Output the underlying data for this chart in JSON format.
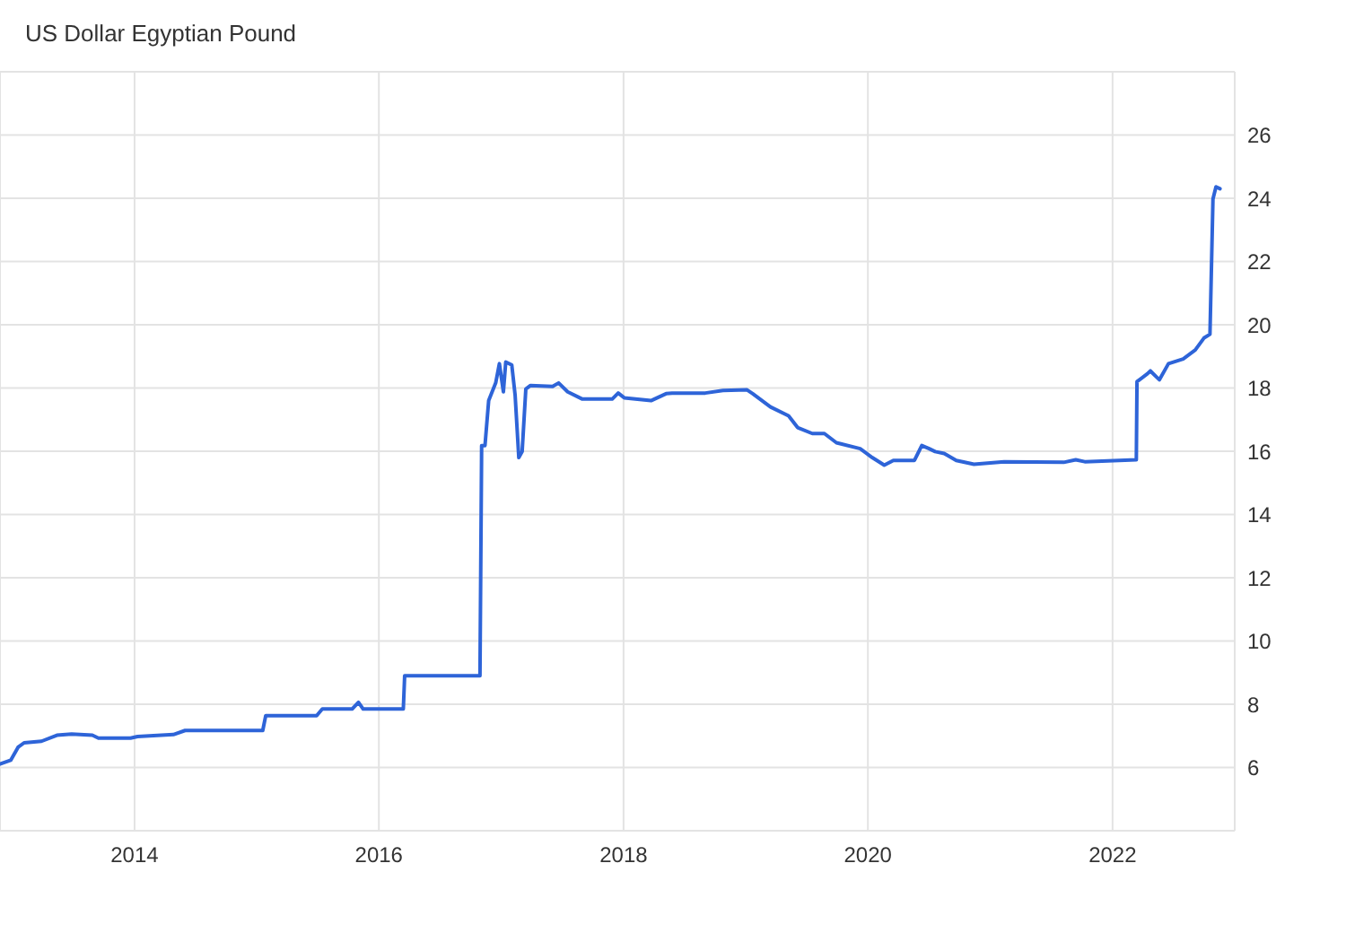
{
  "chart_data": {
    "type": "line",
    "title": "US Dollar Egyptian Pound",
    "x": [
      "2012-11-25",
      "2012-12-27",
      "2013-01-18",
      "2013-02-05",
      "2013-03-29",
      "2013-05-14",
      "2013-06-27",
      "2013-08-28",
      "2013-09-15",
      "2013-12-20",
      "2014-01-10",
      "2014-04-27",
      "2014-06-01",
      "2015-01-19",
      "2015-01-28",
      "2015-06-29",
      "2015-07-16",
      "2015-10-13",
      "2015-11-01",
      "2015-11-15",
      "2016-03-14",
      "2016-03-18",
      "2016-10-29",
      "2016-11-03",
      "2016-11-13",
      "2016-11-24",
      "2016-12-15",
      "2016-12-26",
      "2017-01-07",
      "2017-01-14",
      "2017-02-01",
      "2017-02-11",
      "2017-02-22",
      "2017-03-04",
      "2017-03-15",
      "2017-03-29",
      "2017-06-03",
      "2017-06-21",
      "2017-07-18",
      "2017-08-31",
      "2017-11-28",
      "2017-12-16",
      "2018-01-03",
      "2018-03-24",
      "2018-05-08",
      "2018-05-26",
      "2018-09-02",
      "2018-10-25",
      "2019-01-05",
      "2019-01-22",
      "2019-03-16",
      "2019-05-09",
      "2019-06-05",
      "2019-07-19",
      "2019-08-24",
      "2019-09-29",
      "2019-12-09",
      "2020-01-14",
      "2020-02-19",
      "2020-03-17",
      "2020-05-19",
      "2020-06-10",
      "2020-07-02",
      "2020-07-20",
      "2020-08-16",
      "2020-09-21",
      "2020-11-13",
      "2021-02-11",
      "2021-08-08",
      "2021-09-13",
      "2021-10-10",
      "2022-03-13",
      "2022-03-15",
      "2022-04-15",
      "2022-04-24",
      "2022-05-12",
      "2022-05-21",
      "2022-06-17",
      "2022-07-31",
      "2022-09-05",
      "2022-10-01",
      "2022-10-19",
      "2022-10-28",
      "2022-11-06",
      "2022-11-18"
    ],
    "values": [
      6.11,
      6.23,
      6.64,
      6.78,
      6.83,
      7.02,
      7.06,
      7.02,
      6.93,
      6.93,
      6.98,
      7.04,
      7.17,
      7.17,
      7.64,
      7.64,
      7.85,
      7.85,
      8.06,
      7.85,
      7.85,
      8.9,
      8.9,
      16.18,
      16.18,
      17.6,
      18.16,
      18.77,
      17.88,
      18.82,
      18.73,
      17.78,
      15.8,
      15.99,
      17.97,
      18.08,
      18.05,
      18.16,
      17.88,
      17.65,
      17.65,
      17.84,
      17.69,
      17.6,
      17.82,
      17.84,
      17.84,
      17.92,
      17.94,
      17.82,
      17.4,
      17.12,
      16.75,
      16.56,
      16.56,
      16.27,
      16.08,
      15.8,
      15.56,
      15.71,
      15.71,
      16.18,
      16.08,
      15.99,
      15.93,
      15.71,
      15.59,
      15.67,
      15.65,
      15.73,
      15.67,
      15.73,
      18.2,
      18.45,
      18.54,
      18.35,
      18.26,
      18.77,
      18.92,
      19.2,
      19.58,
      19.7,
      23.98,
      24.36,
      24.3
    ],
    "color": "#2e64d8",
    "xlim": [
      "2012-11-25",
      "2023-01-01"
    ],
    "xticks": [
      "2014",
      "2016",
      "2018",
      "2020",
      "2022"
    ],
    "ylim": [
      4,
      28
    ],
    "yticks": [
      {
        "value": 4,
        "label": null
      },
      6,
      8,
      10,
      12,
      14,
      16,
      18,
      20,
      22,
      24,
      26,
      {
        "value": 28,
        "label": null
      }
    ],
    "grid": true
  }
}
